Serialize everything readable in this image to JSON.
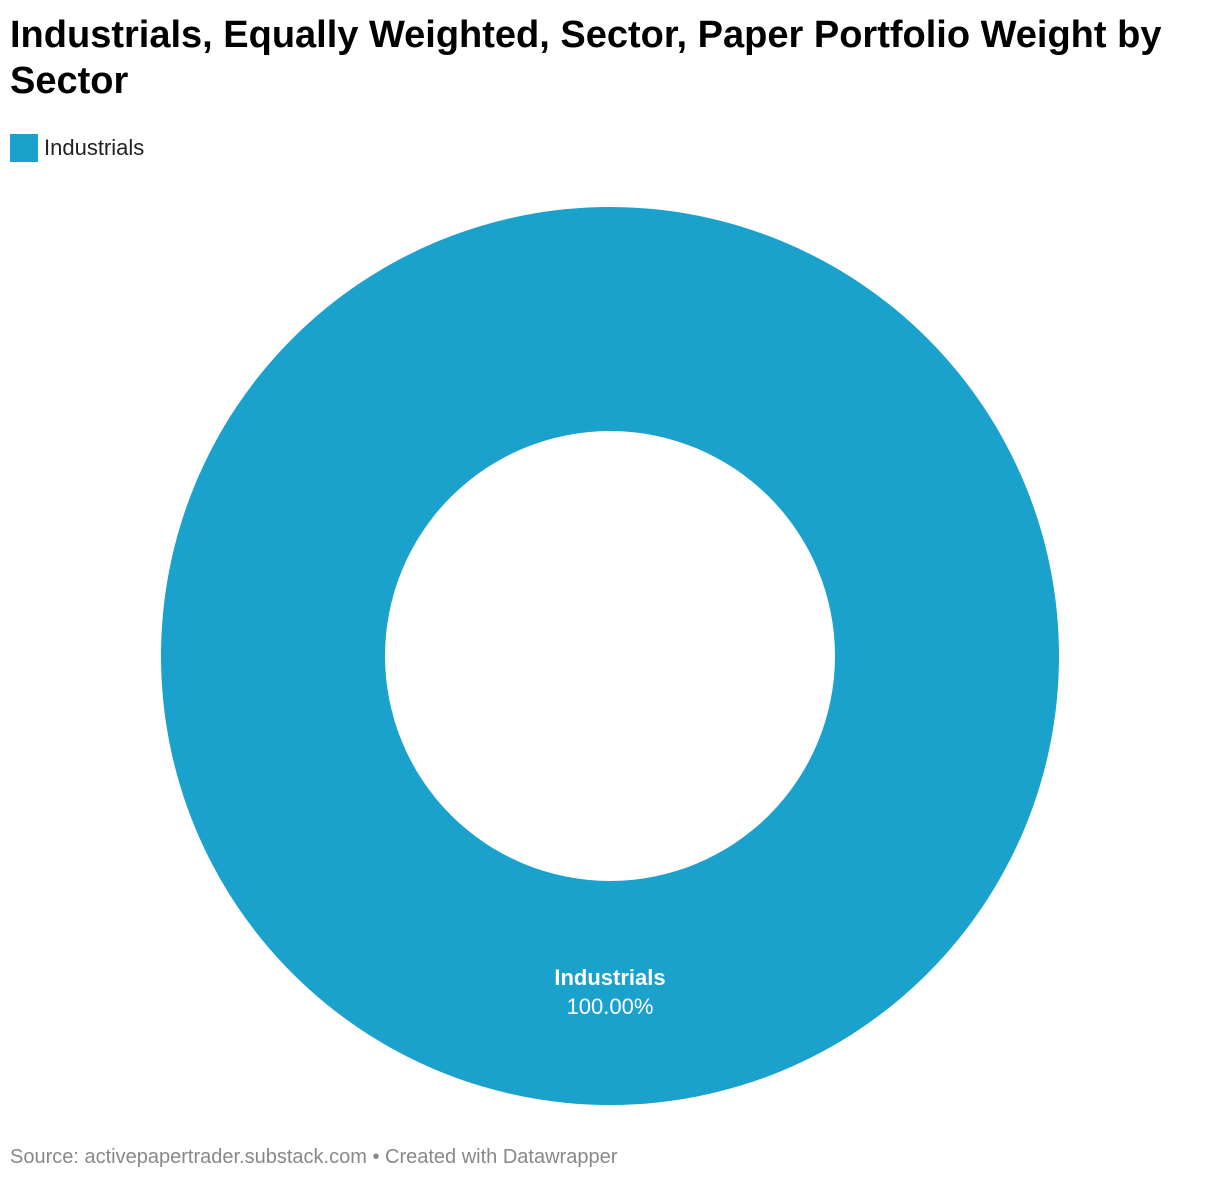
{
  "title": "Industrials, Equally Weighted, Sector, Paper Portfolio Weight by Sector",
  "legend": {
    "items": [
      {
        "label": "Industrials",
        "color": "#1aa1cc"
      }
    ]
  },
  "chart_data": {
    "type": "pie",
    "variant": "donut",
    "title": "Industrials, Equally Weighted, Sector, Paper Portfolio Weight by Sector",
    "legend_position": "top-left",
    "slices": [
      {
        "label": "Industrials",
        "value": 100.0,
        "display": "100.00%",
        "color": "#1aa1cc"
      }
    ]
  },
  "footer": {
    "source_label": "Source:",
    "source_value": "activepapertrader.substack.com",
    "separator": "•",
    "created_with": "Created with Datawrapper"
  }
}
